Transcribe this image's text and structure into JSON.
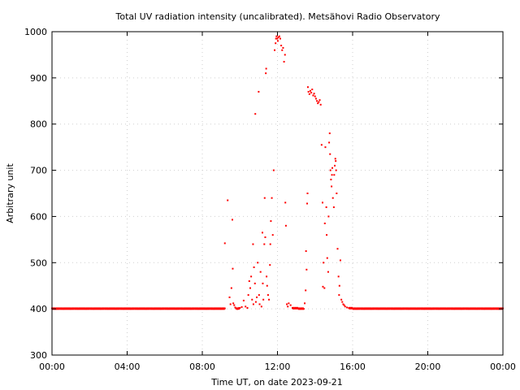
{
  "chart_data": {
    "type": "scatter",
    "title": "Total UV radiation intensity (uncalibrated). Metsähovi Radio Observatory",
    "xlabel": "Time UT, on date 2023-09-21",
    "ylabel": "Arbitrary unit",
    "xlim": [
      0,
      24
    ],
    "ylim": [
      300,
      1000
    ],
    "grid": true,
    "x_ticks": [
      0,
      4,
      8,
      12,
      16,
      20,
      24
    ],
    "x_tick_labels": [
      "00:00",
      "04:00",
      "08:00",
      "12:00",
      "16:00",
      "20:00",
      "00:00"
    ],
    "y_ticks": [
      300,
      400,
      500,
      600,
      700,
      800,
      900,
      1000
    ],
    "y_tick_labels": [
      "300",
      "400",
      "500",
      "600",
      "700",
      "800",
      "900",
      "1000"
    ],
    "marker_color": "#ff0000",
    "series": [
      {
        "points": [
          [
            0.0,
            401
          ],
          [
            0.2,
            400
          ],
          [
            0.4,
            401
          ],
          [
            0.6,
            400
          ],
          [
            0.8,
            401
          ],
          [
            1.0,
            400
          ],
          [
            1.2,
            401
          ],
          [
            1.4,
            400
          ],
          [
            1.6,
            401
          ],
          [
            1.8,
            400
          ],
          [
            2.0,
            401
          ],
          [
            2.2,
            400
          ],
          [
            2.4,
            401
          ],
          [
            2.6,
            400
          ],
          [
            2.8,
            401
          ],
          [
            3.0,
            400
          ],
          [
            3.2,
            401
          ],
          [
            3.4,
            400
          ],
          [
            3.6,
            401
          ],
          [
            3.8,
            400
          ],
          [
            4.0,
            401
          ],
          [
            4.2,
            400
          ],
          [
            4.4,
            401
          ],
          [
            4.6,
            400
          ],
          [
            4.8,
            401
          ],
          [
            5.0,
            400
          ],
          [
            5.2,
            401
          ],
          [
            5.4,
            400
          ],
          [
            5.6,
            401
          ],
          [
            5.8,
            400
          ],
          [
            6.0,
            401
          ],
          [
            6.2,
            400
          ],
          [
            6.4,
            401
          ],
          [
            6.6,
            400
          ],
          [
            6.8,
            401
          ],
          [
            7.0,
            400
          ],
          [
            7.2,
            401
          ],
          [
            7.4,
            400
          ],
          [
            7.6,
            401
          ],
          [
            7.8,
            400
          ],
          [
            8.0,
            401
          ],
          [
            8.2,
            400
          ],
          [
            8.4,
            401
          ],
          [
            8.6,
            400
          ],
          [
            8.8,
            401
          ],
          [
            9.0,
            400
          ],
          [
            9.2,
            401
          ],
          [
            9.2,
            542
          ],
          [
            9.35,
            635
          ],
          [
            9.45,
            425
          ],
          [
            9.5,
            410
          ],
          [
            9.55,
            445
          ],
          [
            9.6,
            593
          ],
          [
            9.62,
            487
          ],
          [
            9.65,
            412
          ],
          [
            9.7,
            408
          ],
          [
            9.75,
            403
          ],
          [
            9.8,
            401
          ],
          [
            9.9,
            400
          ],
          [
            10.0,
            402
          ],
          [
            10.1,
            404
          ],
          [
            10.2,
            418
          ],
          [
            10.3,
            405
          ],
          [
            10.4,
            402
          ],
          [
            10.45,
            430
          ],
          [
            10.5,
            460
          ],
          [
            10.55,
            445
          ],
          [
            10.6,
            470
          ],
          [
            10.65,
            420
          ],
          [
            10.7,
            540
          ],
          [
            10.72,
            410
          ],
          [
            10.75,
            490
          ],
          [
            10.8,
            455
          ],
          [
            10.82,
            822
          ],
          [
            10.85,
            415
          ],
          [
            10.9,
            425
          ],
          [
            10.95,
            500
          ],
          [
            11.0,
            870
          ],
          [
            11.02,
            430
          ],
          [
            11.05,
            410
          ],
          [
            11.1,
            480
          ],
          [
            11.15,
            405
          ],
          [
            11.2,
            565
          ],
          [
            11.22,
            455
          ],
          [
            11.25,
            420
          ],
          [
            11.3,
            540
          ],
          [
            11.32,
            640
          ],
          [
            11.35,
            555
          ],
          [
            11.38,
            910
          ],
          [
            11.4,
            920
          ],
          [
            11.42,
            470
          ],
          [
            11.45,
            450
          ],
          [
            11.5,
            430
          ],
          [
            11.55,
            420
          ],
          [
            11.6,
            495
          ],
          [
            11.62,
            540
          ],
          [
            11.65,
            590
          ],
          [
            11.7,
            640
          ],
          [
            11.75,
            560
          ],
          [
            11.8,
            700
          ],
          [
            11.85,
            960
          ],
          [
            11.9,
            975
          ],
          [
            11.92,
            985
          ],
          [
            11.95,
            990
          ],
          [
            12.0,
            985
          ],
          [
            12.02,
            980
          ],
          [
            12.05,
            988
          ],
          [
            12.1,
            990
          ],
          [
            12.15,
            985
          ],
          [
            12.2,
            970
          ],
          [
            12.25,
            960
          ],
          [
            12.3,
            965
          ],
          [
            12.35,
            935
          ],
          [
            12.4,
            950
          ],
          [
            12.42,
            630
          ],
          [
            12.45,
            580
          ],
          [
            12.5,
            410
          ],
          [
            12.55,
            405
          ],
          [
            12.6,
            412
          ],
          [
            12.7,
            408
          ],
          [
            12.8,
            402
          ],
          [
            12.9,
            401
          ],
          [
            13.0,
            402
          ],
          [
            13.1,
            401
          ],
          [
            13.2,
            400
          ],
          [
            13.3,
            401
          ],
          [
            13.4,
            400
          ],
          [
            13.45,
            412
          ],
          [
            13.5,
            440
          ],
          [
            13.52,
            525
          ],
          [
            13.55,
            485
          ],
          [
            13.58,
            628
          ],
          [
            13.6,
            650
          ],
          [
            13.62,
            880
          ],
          [
            13.65,
            870
          ],
          [
            13.7,
            865
          ],
          [
            13.75,
            872
          ],
          [
            13.8,
            868
          ],
          [
            13.85,
            875
          ],
          [
            13.9,
            862
          ],
          [
            13.95,
            866
          ],
          [
            14.0,
            860
          ],
          [
            14.05,
            855
          ],
          [
            14.1,
            850
          ],
          [
            14.15,
            845
          ],
          [
            14.2,
            848
          ],
          [
            14.25,
            852
          ],
          [
            14.3,
            842
          ],
          [
            14.35,
            755
          ],
          [
            14.4,
            630
          ],
          [
            14.42,
            448
          ],
          [
            14.45,
            500
          ],
          [
            14.5,
            445
          ],
          [
            14.52,
            585
          ],
          [
            14.55,
            750
          ],
          [
            14.6,
            620
          ],
          [
            14.62,
            560
          ],
          [
            14.65,
            510
          ],
          [
            14.7,
            480
          ],
          [
            14.72,
            600
          ],
          [
            14.75,
            760
          ],
          [
            14.78,
            780
          ],
          [
            14.8,
            735
          ],
          [
            14.82,
            700
          ],
          [
            14.85,
            680
          ],
          [
            14.88,
            665
          ],
          [
            14.9,
            690
          ],
          [
            14.92,
            705
          ],
          [
            14.95,
            640
          ],
          [
            15.0,
            620
          ],
          [
            15.02,
            690
          ],
          [
            15.05,
            710
          ],
          [
            15.08,
            725
          ],
          [
            15.1,
            720
          ],
          [
            15.12,
            700
          ],
          [
            15.15,
            650
          ],
          [
            15.2,
            530
          ],
          [
            15.25,
            470
          ],
          [
            15.28,
            430
          ],
          [
            15.3,
            450
          ],
          [
            15.35,
            505
          ],
          [
            15.4,
            420
          ],
          [
            15.45,
            415
          ],
          [
            15.5,
            410
          ],
          [
            15.55,
            408
          ],
          [
            15.6,
            405
          ],
          [
            15.7,
            403
          ],
          [
            15.8,
            402
          ],
          [
            16.0,
            401
          ],
          [
            16.2,
            400
          ],
          [
            16.4,
            401
          ],
          [
            16.6,
            400
          ],
          [
            16.8,
            401
          ],
          [
            17.0,
            400
          ],
          [
            17.2,
            401
          ],
          [
            17.4,
            400
          ],
          [
            17.6,
            401
          ],
          [
            17.8,
            400
          ],
          [
            18.0,
            401
          ],
          [
            18.2,
            400
          ],
          [
            18.4,
            401
          ],
          [
            18.6,
            400
          ],
          [
            18.8,
            401
          ],
          [
            19.0,
            400
          ],
          [
            19.2,
            401
          ],
          [
            19.4,
            400
          ],
          [
            19.6,
            401
          ],
          [
            19.8,
            400
          ],
          [
            20.0,
            401
          ],
          [
            20.2,
            400
          ],
          [
            20.4,
            401
          ],
          [
            20.6,
            400
          ],
          [
            20.8,
            401
          ],
          [
            21.0,
            400
          ],
          [
            21.2,
            401
          ],
          [
            21.4,
            400
          ],
          [
            21.6,
            401
          ],
          [
            21.8,
            400
          ],
          [
            22.0,
            401
          ],
          [
            22.2,
            400
          ],
          [
            22.4,
            401
          ],
          [
            22.6,
            400
          ],
          [
            22.8,
            401
          ],
          [
            23.0,
            400
          ],
          [
            23.2,
            401
          ],
          [
            23.4,
            400
          ],
          [
            23.6,
            401
          ],
          [
            23.8,
            400
          ],
          [
            24.0,
            401
          ]
        ]
      }
    ]
  }
}
